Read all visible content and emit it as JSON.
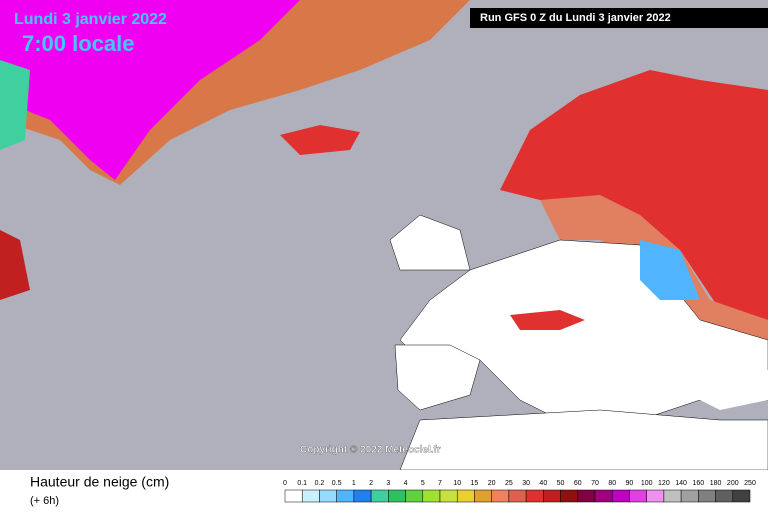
{
  "header": {
    "date": "Lundi 3 janvier 2022",
    "time": "7:00 locale",
    "run": "Run GFS 0 Z du Lundi 3 janvier 2022"
  },
  "copyright": "Copyright © 2022 Meteociel.fr",
  "legend": {
    "title": "Hauteur de neige (cm)",
    "subtitle": "(+ 6h)",
    "labels": [
      "0",
      "0.1",
      "0.2",
      "0.5",
      "1",
      "2",
      "3",
      "4",
      "5",
      "7",
      "10",
      "15",
      "20",
      "25",
      "30",
      "40",
      "50",
      "60",
      "70",
      "80",
      "90",
      "100",
      "120",
      "140",
      "160",
      "180",
      "200",
      "250"
    ],
    "colors": [
      "#ffffff",
      "#c8f0ff",
      "#96dcff",
      "#50b4ff",
      "#2080f0",
      "#40d0a0",
      "#30c060",
      "#60d040",
      "#a0e030",
      "#c8e040",
      "#e8d030",
      "#e0a030",
      "#f08060",
      "#e06050",
      "#e03030",
      "#c02020",
      "#901010",
      "#800040",
      "#a00080",
      "#c000c0",
      "#e040e0",
      "#f090f0",
      "#c0c0c0",
      "#a0a0a0",
      "#808080",
      "#606060",
      "#404040"
    ]
  }
}
